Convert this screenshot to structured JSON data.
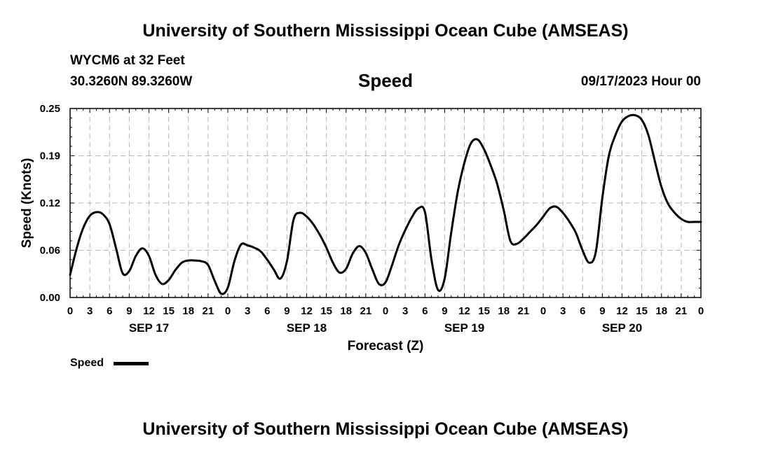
{
  "header": {
    "title": "University of Southern Mississippi Ocean Cube (AMSEAS)",
    "station": "WYCM6 at 32 Feet",
    "coordinates": "30.3260N  89.3260W",
    "variable": "Speed",
    "datetime": "09/17/2023 Hour 00"
  },
  "footer": {
    "title": "University of Southern Mississippi Ocean Cube (AMSEAS)"
  },
  "chart_data": {
    "type": "line",
    "title": "Speed",
    "xlabel": "Forecast (Z)",
    "ylabel": "Speed (Knots)",
    "ylim": [
      0,
      0.25
    ],
    "xlim": [
      0,
      96
    ],
    "yticks": [
      "0.00",
      "0.06",
      "0.12",
      "0.19",
      "0.25"
    ],
    "ytick_values": [
      0,
      0.0625,
      0.125,
      0.1875,
      0.25
    ],
    "xtick_labels": [
      "0",
      "3",
      "6",
      "9",
      "12",
      "15",
      "18",
      "21",
      "0",
      "3",
      "6",
      "9",
      "12",
      "15",
      "18",
      "21",
      "0",
      "3",
      "6",
      "9",
      "12",
      "15",
      "18",
      "21",
      "0",
      "3",
      "6",
      "9",
      "12",
      "15",
      "18",
      "21",
      "0"
    ],
    "day_labels": [
      {
        "label": "SEP 17",
        "hour": 12
      },
      {
        "label": "SEP 18",
        "hour": 36
      },
      {
        "label": "SEP 19",
        "hour": 60
      },
      {
        "label": "SEP 20",
        "hour": 84
      }
    ],
    "grid": true,
    "legend": {
      "position": "bottom-left",
      "label": "Speed"
    },
    "series": [
      {
        "name": "Speed",
        "color": "#000000",
        "x": [
          0,
          1,
          2,
          3,
          4,
          5,
          6,
          7,
          8,
          9,
          10,
          11,
          12,
          13,
          14,
          15,
          16,
          17,
          18,
          19,
          20,
          21,
          22,
          23,
          24,
          25,
          26,
          27,
          28,
          29,
          30,
          31,
          32,
          33,
          34,
          35,
          36,
          37,
          38,
          39,
          40,
          41,
          42,
          43,
          44,
          45,
          46,
          47,
          48,
          49,
          50,
          51,
          52,
          53,
          54,
          55,
          56,
          57,
          58,
          59,
          60,
          61,
          62,
          63,
          64,
          65,
          66,
          67,
          68,
          69,
          70,
          71,
          72,
          73,
          74,
          75,
          76,
          77,
          78,
          79,
          80,
          81,
          82,
          83,
          84,
          85,
          86,
          87,
          88,
          89,
          90,
          91,
          92,
          93,
          94,
          95,
          96
        ],
        "y": [
          0.03,
          0.065,
          0.092,
          0.108,
          0.113,
          0.11,
          0.097,
          0.065,
          0.032,
          0.035,
          0.055,
          0.065,
          0.055,
          0.03,
          0.018,
          0.023,
          0.036,
          0.046,
          0.049,
          0.049,
          0.048,
          0.043,
          0.022,
          0.005,
          0.013,
          0.048,
          0.07,
          0.069,
          0.066,
          0.061,
          0.05,
          0.037,
          0.025,
          0.048,
          0.103,
          0.112,
          0.107,
          0.097,
          0.083,
          0.066,
          0.046,
          0.033,
          0.038,
          0.058,
          0.068,
          0.059,
          0.037,
          0.018,
          0.02,
          0.043,
          0.069,
          0.089,
          0.106,
          0.118,
          0.113,
          0.05,
          0.01,
          0.025,
          0.086,
          0.14,
          0.178,
          0.204,
          0.209,
          0.196,
          0.175,
          0.15,
          0.115,
          0.075,
          0.071,
          0.078,
          0.087,
          0.096,
          0.107,
          0.118,
          0.12,
          0.112,
          0.1,
          0.085,
          0.062,
          0.046,
          0.06,
          0.132,
          0.188,
          0.215,
          0.233,
          0.24,
          0.241,
          0.235,
          0.215,
          0.18,
          0.146,
          0.124,
          0.112,
          0.104,
          0.1,
          0.1,
          0.1
        ]
      }
    ]
  }
}
